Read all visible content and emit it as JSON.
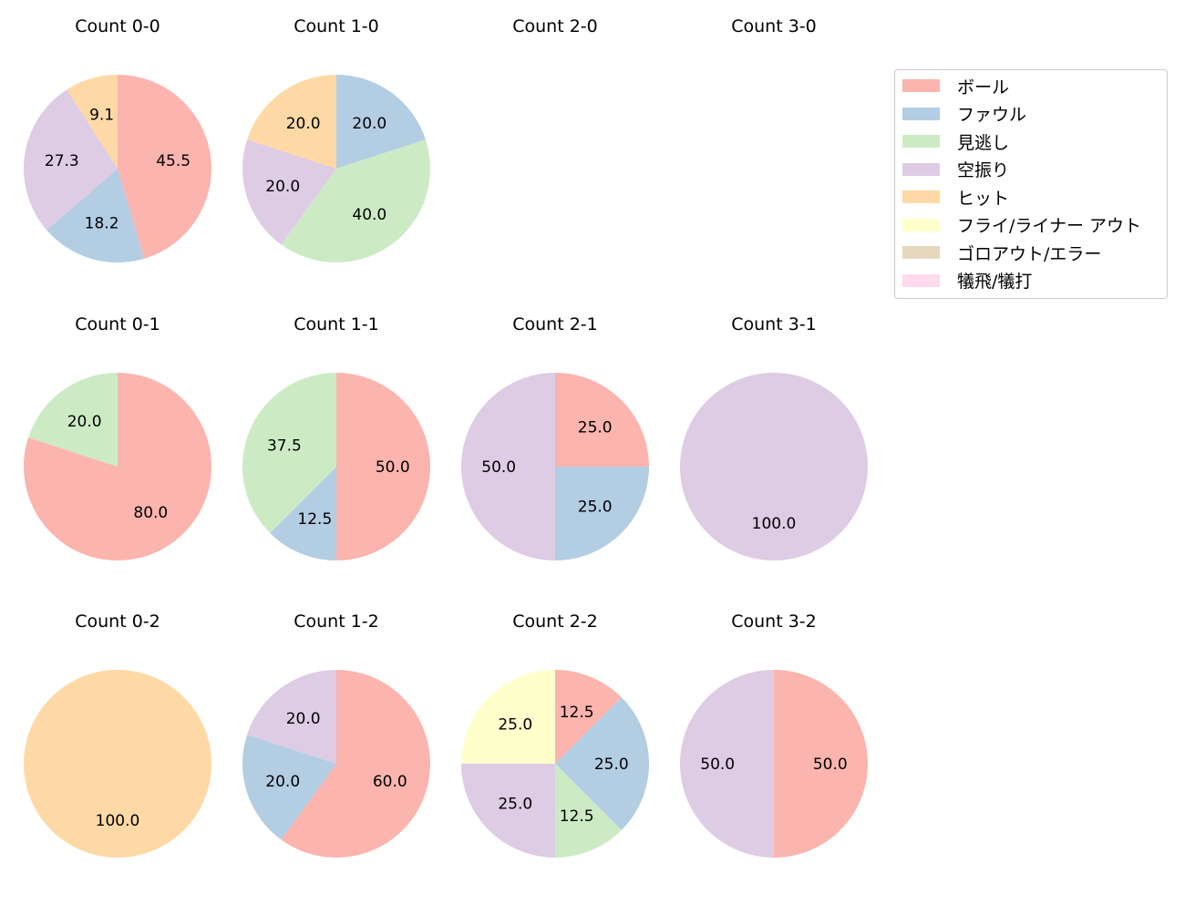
{
  "chart_data": [
    {
      "type": "pie",
      "title": "Count 0-0",
      "values": [
        45.5,
        18.2,
        0,
        27.3,
        9.1,
        0,
        0,
        0
      ]
    },
    {
      "type": "pie",
      "title": "Count 1-0",
      "values": [
        0,
        20.0,
        40.0,
        20.0,
        20.0,
        0,
        0,
        0
      ]
    },
    {
      "type": "pie",
      "title": "Count 2-0",
      "values": []
    },
    {
      "type": "pie",
      "title": "Count 3-0",
      "values": []
    },
    {
      "type": "pie",
      "title": "Count 0-1",
      "values": [
        80.0,
        0,
        20.0,
        0,
        0,
        0,
        0,
        0
      ]
    },
    {
      "type": "pie",
      "title": "Count 1-1",
      "values": [
        50.0,
        12.5,
        37.5,
        0,
        0,
        0,
        0,
        0
      ]
    },
    {
      "type": "pie",
      "title": "Count 2-1",
      "values": [
        25.0,
        25.0,
        0,
        50.0,
        0,
        0,
        0,
        0
      ]
    },
    {
      "type": "pie",
      "title": "Count 3-1",
      "values": [
        0,
        0,
        0,
        100.0,
        0,
        0,
        0,
        0
      ]
    },
    {
      "type": "pie",
      "title": "Count 0-2",
      "values": [
        0,
        0,
        0,
        0,
        100.0,
        0,
        0,
        0
      ]
    },
    {
      "type": "pie",
      "title": "Count 1-2",
      "values": [
        60.0,
        20.0,
        0,
        20.0,
        0,
        0,
        0,
        0
      ]
    },
    {
      "type": "pie",
      "title": "Count 2-2",
      "values": [
        12.5,
        25.0,
        12.5,
        25.0,
        0,
        25.0,
        0,
        0
      ]
    },
    {
      "type": "pie",
      "title": "Count 3-2",
      "values": [
        50.0,
        0,
        0,
        50.0,
        0,
        0,
        0,
        0
      ]
    }
  ],
  "categories": [
    "ボール",
    "ファウル",
    "見逃し",
    "空振り",
    "ヒット",
    "フライ/ライナー アウト",
    "ゴロアウト/エラー",
    "犠飛/犠打"
  ],
  "colors": [
    "#fbb4ae",
    "#b3cde3",
    "#ccebc5",
    "#decbe4",
    "#fed9a6",
    "#ffffcc",
    "#e5d8bd",
    "#fddaec"
  ],
  "legend_position": "top-right",
  "start_angle": 90,
  "direction": "clockwise"
}
